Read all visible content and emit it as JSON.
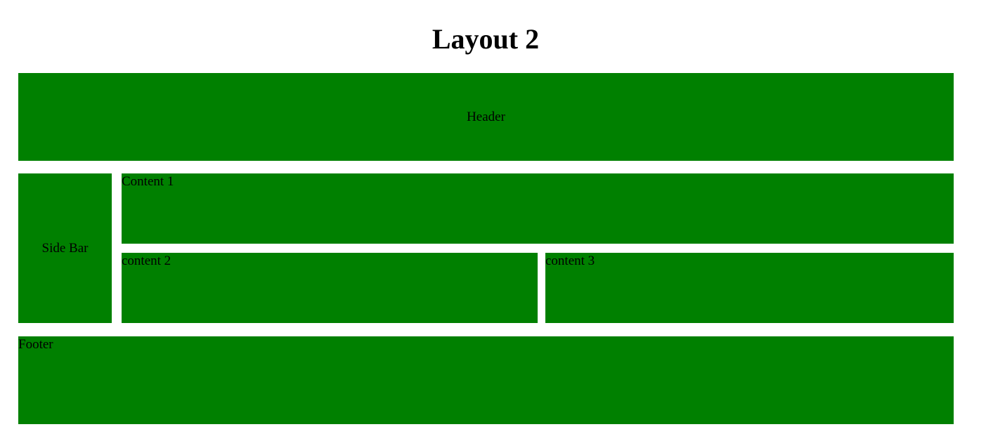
{
  "page": {
    "title": "Layout 2"
  },
  "layout": {
    "header": "Header",
    "sidebar": "Side Bar",
    "content1": "Content 1",
    "content2": "content 2",
    "content3": "content 3",
    "footer": "Footer"
  },
  "colors": {
    "block_background": "#008000",
    "page_background": "#ffffff",
    "text": "#000000"
  }
}
